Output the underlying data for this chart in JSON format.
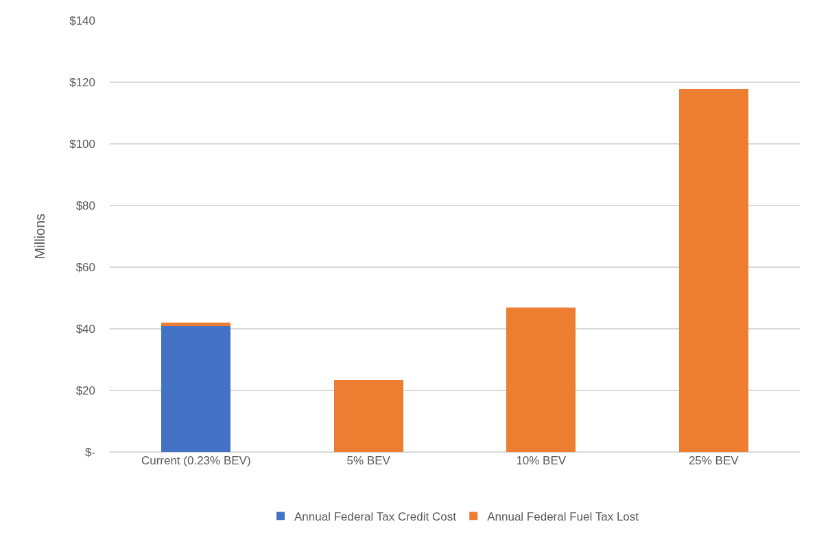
{
  "chart_data": {
    "type": "bar",
    "stacked": true,
    "ylabel": "Millions",
    "categories": [
      "Current (0.23% BEV)",
      "5% BEV",
      "10% BEV",
      "25% BEV"
    ],
    "series": [
      {
        "name": "Annual Federal Tax Credit Cost",
        "color": "#4472c4",
        "values": [
          41,
          0,
          0,
          0
        ]
      },
      {
        "name": "Annual Federal Fuel Tax Lost",
        "color": "#ed7d31",
        "values": [
          1,
          23.4,
          47,
          117.8
        ]
      }
    ],
    "ylim": [
      0,
      140
    ],
    "yticks": [
      {
        "value": 0,
        "label": "$-"
      },
      {
        "value": 20,
        "label": "$20"
      },
      {
        "value": 40,
        "label": "$40"
      },
      {
        "value": 60,
        "label": "$60"
      },
      {
        "value": 80,
        "label": "$80"
      },
      {
        "value": 100,
        "label": "$100"
      },
      {
        "value": 120,
        "label": "$120"
      },
      {
        "value": 140,
        "label": "$140"
      }
    ],
    "grid": "y",
    "legend": "bottom"
  }
}
